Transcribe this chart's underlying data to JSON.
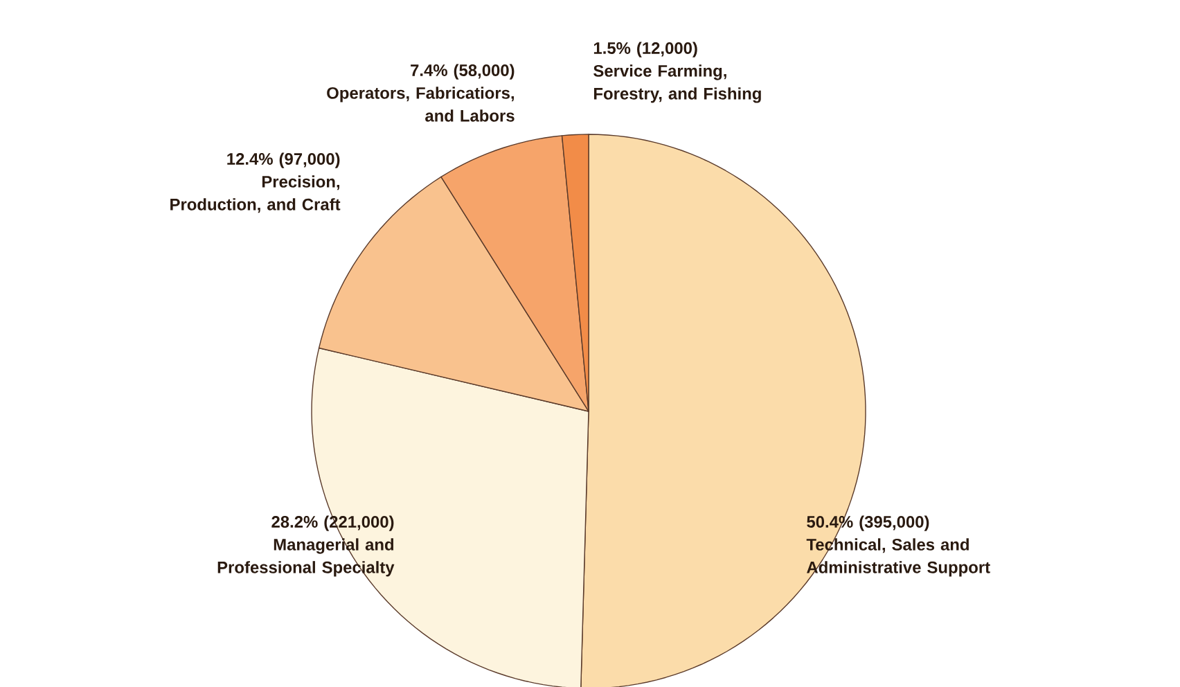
{
  "chart_data": {
    "type": "pie",
    "categories": [
      "Technical, Sales and Administrative Support",
      "Managerial and Professional Specialty",
      "Precision, Production, and Craft",
      "Operators, Fabricatiors, and Labors",
      "Service Farming, Forestry, and Fishing"
    ],
    "values": [
      395000,
      221000,
      97000,
      58000,
      12000
    ],
    "value_labels": [
      "50.4% (395,000)",
      "28.2% (221,000)",
      "12.4% (97,000)",
      "7.4% (58,000)",
      "1.5% (12,000)"
    ],
    "colors": [
      "#fbdcaa",
      "#fdf4de",
      "#f9c28e",
      "#f6a46a",
      "#f28c48"
    ]
  }
}
